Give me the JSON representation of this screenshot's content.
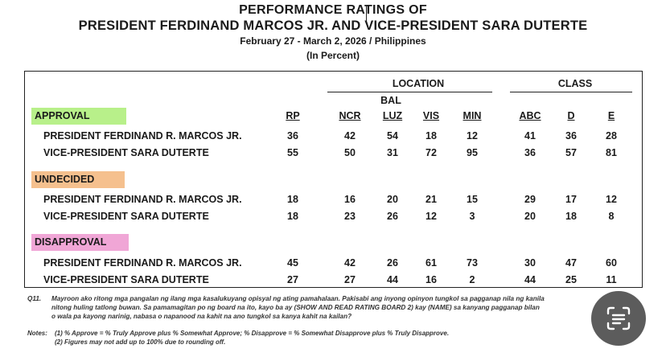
{
  "title": {
    "line1": "PERFORMANCE RATINGS OF",
    "line2": "PRESIDENT FERDINAND MARCOS JR. AND VICE-PRESIDENT SARA DUTERTE",
    "dates": "February 27 - March 2, 2026 / Philippines",
    "unit": "(In Percent)"
  },
  "groups": {
    "location": "LOCATION",
    "class": "CLASS",
    "bal": "BAL"
  },
  "columns": [
    "RP",
    "NCR",
    "LUZ",
    "VIS",
    "MIN",
    "ABC",
    "D",
    "E"
  ],
  "categories": [
    {
      "label": "APPROVAL",
      "color": "#b8f08a",
      "rows": [
        {
          "name": "PRESIDENT FERDINAND R. MARCOS JR.",
          "values": [
            "36",
            "42",
            "54",
            "18",
            "12",
            "41",
            "36",
            "28"
          ]
        },
        {
          "name": "VICE-PRESIDENT SARA DUTERTE",
          "values": [
            "55",
            "50",
            "31",
            "72",
            "95",
            "36",
            "57",
            "81"
          ]
        }
      ]
    },
    {
      "label": "UNDECIDED",
      "color": "#f5c08e",
      "rows": [
        {
          "name": "PRESIDENT FERDINAND R. MARCOS JR.",
          "values": [
            "18",
            "16",
            "20",
            "21",
            "15",
            "29",
            "17",
            "12"
          ]
        },
        {
          "name": "VICE-PRESIDENT SARA DUTERTE",
          "values": [
            "18",
            "23",
            "26",
            "12",
            "3",
            "20",
            "18",
            "8"
          ]
        }
      ]
    },
    {
      "label": "DISAPPROVAL",
      "color": "#f0a6d6",
      "rows": [
        {
          "name": "PRESIDENT FERDINAND R. MARCOS JR.",
          "values": [
            "45",
            "42",
            "26",
            "61",
            "73",
            "30",
            "47",
            "60"
          ]
        },
        {
          "name": "VICE-PRESIDENT SARA DUTERTE",
          "values": [
            "27",
            "27",
            "44",
            "16",
            "2",
            "44",
            "25",
            "11"
          ]
        }
      ]
    }
  ],
  "question": {
    "label": "Q11.",
    "lines": [
      "Mayroon ako ritong mga pangalan ng ilang mga kasalukuyang opisyal ng ating pamahalaan.  Pakisabi ang inyong opinyon tungkol sa pagganap nila ng kanila",
      "nitong huling tatlong buwan. Sa pamamagitan po ng board na ito, kayo ba ay (SHOW AND READ RATING BOARD 2) kay (NAME) sa kanyang pagganap bilan",
      "o wala pa kayong narinig, nabasa o napanood na kahit na ano tungkol sa kanya kahit na kailan?"
    ]
  },
  "notes": {
    "label": "Notes:",
    "lines": [
      "(1) % Approve = % Truly Approve plus % Somewhat Approve; % Disapprove = % Somewhat Disapprove plus % Truly Disapprove.",
      "(2) Figures may not add up to 100% due to rounding off."
    ]
  },
  "lens_icon": "text-scan-icon"
}
